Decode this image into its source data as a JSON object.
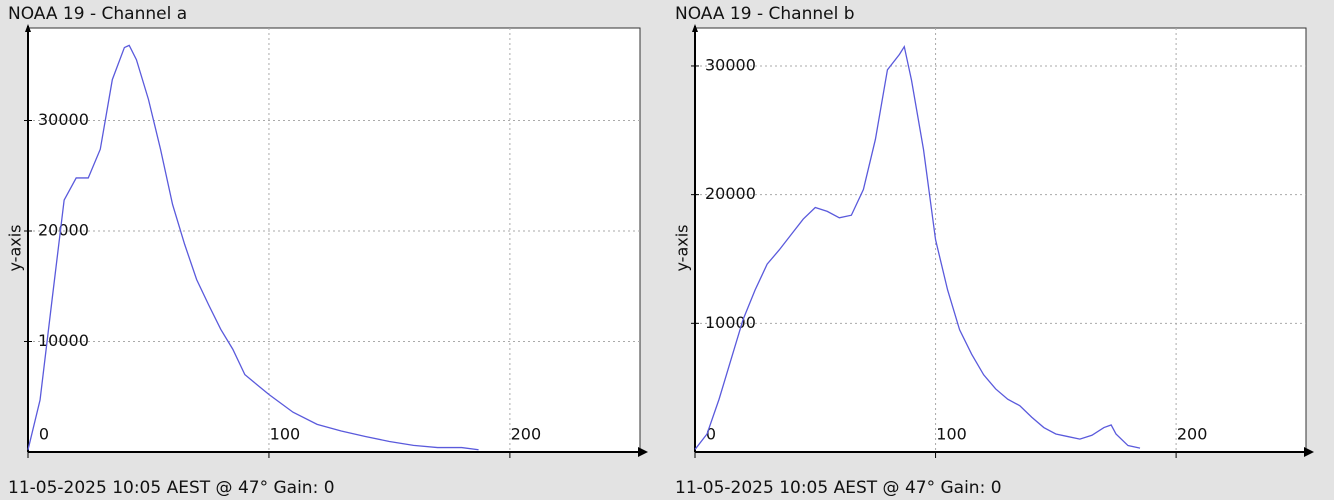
{
  "chart_data": [
    {
      "type": "line",
      "title": "NOAA 19 - Channel a",
      "ylabel": "y-axis",
      "footer": "11-05-2025 10:05 AEST @ 47° Gain: 0",
      "x": [
        0,
        5,
        10,
        15,
        20,
        25,
        30,
        35,
        40,
        42,
        45,
        50,
        55,
        60,
        65,
        70,
        75,
        80,
        85,
        90,
        95,
        100,
        110,
        120,
        130,
        140,
        150,
        160,
        170,
        180,
        187
      ],
      "series": [
        {
          "name": "Channel a",
          "color": "#5a5adc",
          "values": [
            200,
            4700,
            13800,
            22800,
            24800,
            24800,
            27400,
            33700,
            36600,
            36800,
            35500,
            31900,
            27400,
            22400,
            18800,
            15600,
            13300,
            11100,
            9300,
            7000,
            6100,
            5200,
            3600,
            2500,
            1900,
            1400,
            950,
            600,
            400,
            400,
            200
          ]
        }
      ],
      "xlim": [
        0,
        254
      ],
      "ylim": [
        0,
        38370
      ],
      "xticks": [
        0,
        100,
        200
      ],
      "yticks": [
        10000,
        20000,
        30000
      ],
      "grid": true
    },
    {
      "type": "line",
      "title": "NOAA 19 - Channel b",
      "ylabel": "y-axis",
      "footer": "11-05-2025 10:05 AEST @ 47° Gain: 0",
      "x": [
        0,
        5,
        10,
        15,
        20,
        25,
        30,
        35,
        40,
        45,
        50,
        55,
        60,
        65,
        70,
        75,
        80,
        85,
        87,
        90,
        95,
        100,
        105,
        110,
        115,
        120,
        125,
        130,
        135,
        140,
        145,
        150,
        155,
        160,
        165,
        170,
        173,
        175,
        180,
        185
      ],
      "series": [
        {
          "name": "Channel b",
          "color": "#5a5adc",
          "values": [
            200,
            1400,
            4100,
            7200,
            10300,
            12600,
            14600,
            15700,
            16900,
            18100,
            19000,
            18700,
            18200,
            18400,
            20400,
            24300,
            29700,
            30900,
            31500,
            28900,
            23500,
            16500,
            12600,
            9500,
            7600,
            6000,
            4900,
            4100,
            3600,
            2700,
            1900,
            1400,
            1200,
            1000,
            1300,
            1900,
            2100,
            1400,
            500,
            300
          ]
        }
      ],
      "xlim": [
        0,
        254
      ],
      "ylim": [
        0,
        32950
      ],
      "xticks": [
        0,
        100,
        200
      ],
      "yticks": [
        10000,
        20000,
        30000
      ],
      "grid": true
    }
  ]
}
